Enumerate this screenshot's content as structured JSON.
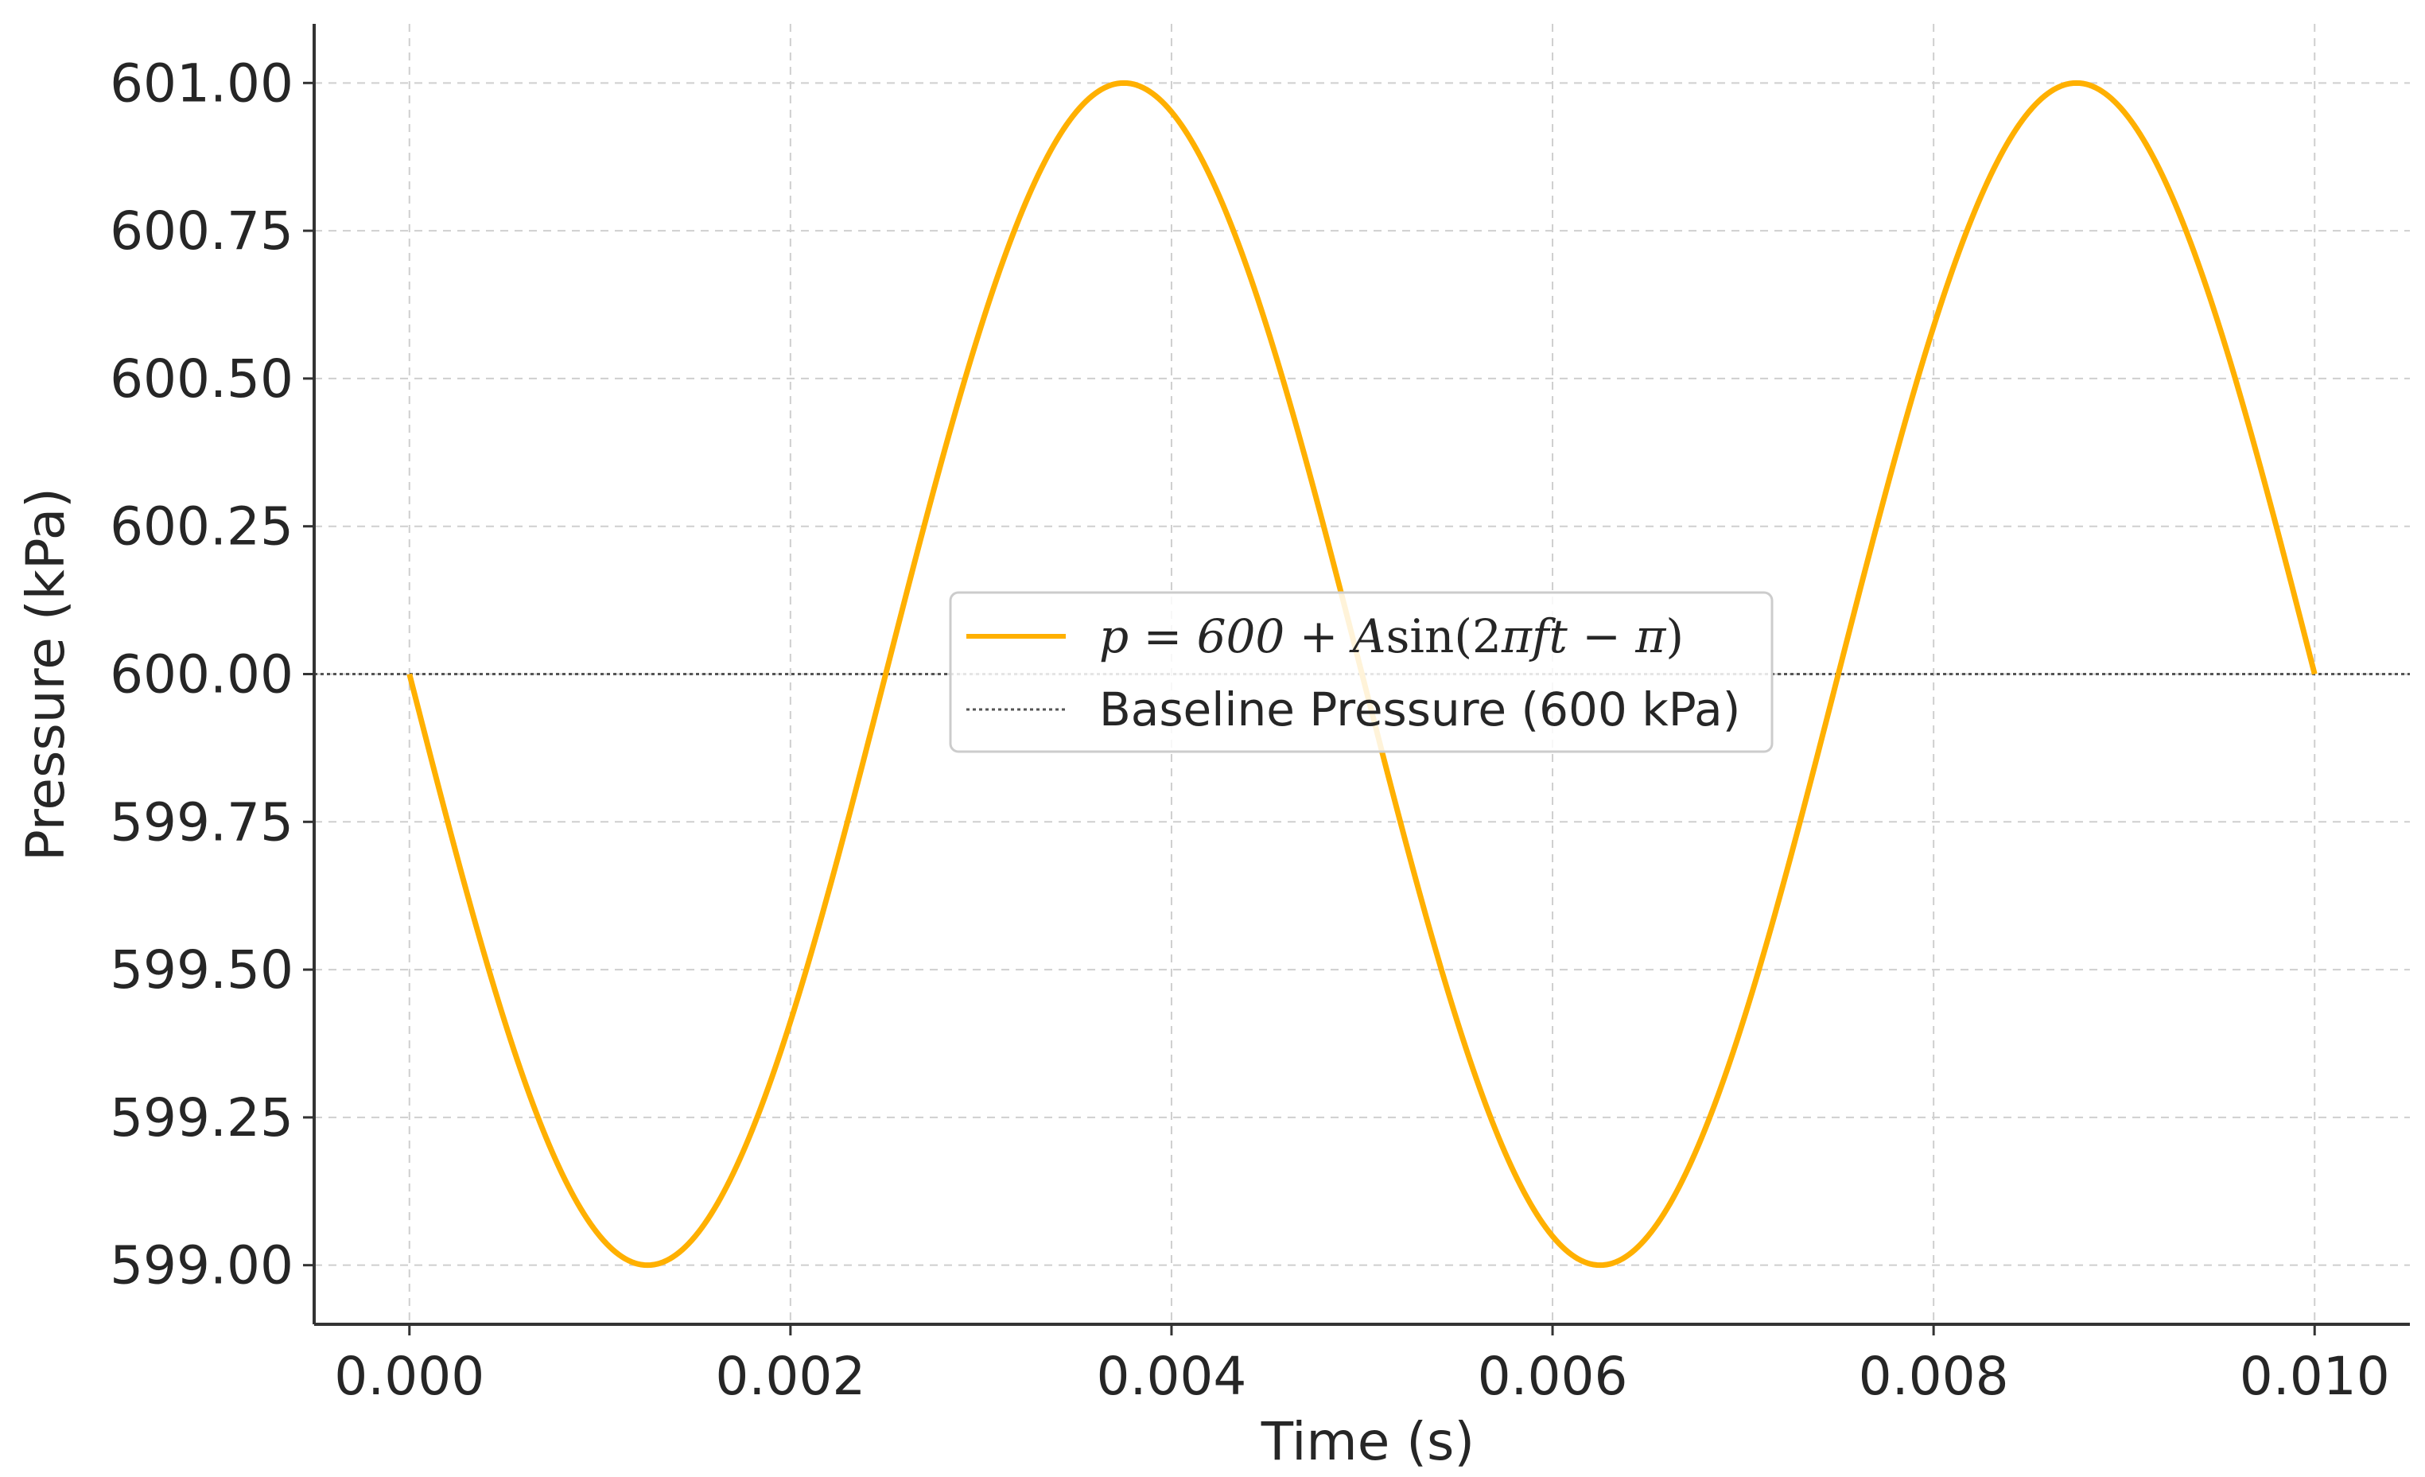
{
  "chart_data": {
    "type": "line",
    "title": "",
    "xlabel": "Time (s)",
    "ylabel": "Pressure (kPa)",
    "xlim": [
      -0.0005,
      0.0105
    ],
    "ylim": [
      598.9,
      601.1
    ],
    "x_ticks": [
      "0.000",
      "0.002",
      "0.004",
      "0.006",
      "0.008",
      "0.010"
    ],
    "x_tick_values": [
      0,
      0.002,
      0.004,
      0.006,
      0.008,
      0.01
    ],
    "y_ticks": [
      "599.00",
      "599.25",
      "599.50",
      "599.75",
      "600.00",
      "600.25",
      "600.50",
      "600.75",
      "601.00"
    ],
    "y_tick_values": [
      599.0,
      599.25,
      599.5,
      599.75,
      600.0,
      600.25,
      600.5,
      600.75,
      601.0
    ],
    "grid": true,
    "legend_position": "center",
    "series": [
      {
        "name": "p = 600 + A sin(2πft − π)",
        "style": "solid",
        "color": "#FFB000",
        "function": {
          "offset": 600,
          "amplitude": 1,
          "frequency": 200,
          "phase": -3.14159265,
          "t_start": 0,
          "t_end": 0.01
        },
        "sample_points": {
          "x": [
            0,
            0.00125,
            0.0025,
            0.00375,
            0.005,
            0.00625,
            0.0075,
            0.00875,
            0.01
          ],
          "y": [
            600.0,
            599.0,
            600.0,
            601.0,
            600.0,
            599.0,
            600.0,
            601.0,
            600.0
          ]
        }
      },
      {
        "name": "Baseline Pressure (600 kPa)",
        "style": "dotted",
        "color": "#555555",
        "y_constant": 600
      }
    ],
    "legend": {
      "entry1": {
        "pre": "p = 600 + ",
        "A": "A",
        "sin": "sin",
        "paren": "(2",
        "pi": "π",
        "ft": "ft − ",
        "pi2": "π",
        "close": ")"
      },
      "entry2": "Baseline Pressure (600 kPa)"
    }
  }
}
